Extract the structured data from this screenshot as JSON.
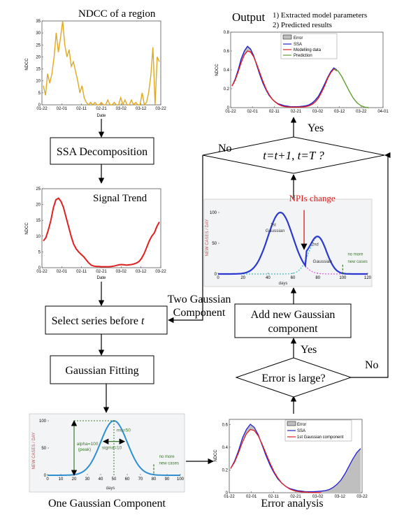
{
  "panels": {
    "ndcc": {
      "title": "NDCC of a region",
      "ylabel": "NDCC",
      "xlabel": "Date",
      "yticks": [
        "0",
        "5",
        "10",
        "15",
        "20",
        "25",
        "30",
        "35"
      ],
      "xticks": [
        "01-22",
        "02-01",
        "02-11",
        "02-21",
        "03-02",
        "03-12",
        "03-22"
      ],
      "color": "#e0a820",
      "values": [
        8,
        4,
        13,
        9,
        13,
        20,
        30,
        22,
        28,
        35,
        25,
        20,
        23,
        16,
        18,
        14,
        10,
        5,
        8,
        3,
        1,
        0,
        1,
        0,
        1,
        0,
        0,
        1,
        0,
        0,
        2,
        0,
        0,
        1,
        0,
        0,
        3,
        0,
        2,
        0,
        0,
        2,
        0,
        1,
        0,
        0,
        5,
        0,
        1,
        5,
        12,
        24,
        0,
        20,
        18
      ]
    },
    "trend": {
      "title": "Signal Trend",
      "ylabel": "NDCC",
      "xlabel": "Date",
      "yticks": [
        "0",
        "5",
        "10",
        "15",
        "20",
        "25"
      ],
      "xticks": [
        "01-22",
        "02-01",
        "02-11",
        "02-21",
        "03-02",
        "03-12",
        "03-22"
      ],
      "color": "#e02020",
      "values": [
        8.5,
        9.5,
        12,
        15,
        19,
        21.5,
        22,
        21,
        19,
        16,
        13,
        10,
        7.5,
        6,
        5,
        4.2,
        3.5,
        2.5,
        1.5,
        0.8,
        0.5,
        0.4,
        0.4,
        0.3,
        0.3,
        0.3,
        0.3,
        0.4,
        0.5,
        0.7,
        0.9,
        1,
        0.9,
        0.8,
        0.9,
        1,
        1.2,
        1.5,
        2,
        3,
        4.5,
        6.5,
        8.5,
        10,
        11,
        13,
        14.5
      ]
    },
    "output": {
      "ylabel": "NDCC",
      "yticks": [
        "0",
        "0.2",
        "0.4",
        "0.6",
        "0.8"
      ],
      "xticks": [
        "01-22",
        "02-01",
        "02-11",
        "02-21",
        "03-02",
        "03-12",
        "03-22",
        "04-01"
      ],
      "legend": [
        "Error",
        "SSA",
        "Modelling data",
        "Prediction"
      ],
      "colors": {
        "error": "#bfbfbf",
        "ssa": "#2020d0",
        "model": "#e02020",
        "prediction": "#60a030"
      }
    },
    "error": {
      "ylabel": "NDCC",
      "yticks": [
        "0",
        "0.2",
        "0.4",
        "0.6"
      ],
      "xticks": [
        "01-22",
        "02-01",
        "02-11",
        "02-21",
        "03-02",
        "03-12",
        "03-22"
      ],
      "legend": [
        "Error",
        "SSA",
        "1st Gaussian component"
      ]
    },
    "one_gauss": {
      "ylabel": "NEW CASES / DAY",
      "xlabel": "days",
      "yticks": [
        "0",
        "50",
        "100"
      ],
      "xticks": [
        "0",
        "10",
        "20",
        "30",
        "40",
        "50",
        "60",
        "70",
        "80",
        "90",
        "100"
      ],
      "ann_alpha": "alpha=100",
      "ann_peak": "(peak)",
      "ann_mu": "mu=50",
      "ann_sigma": "sigma=10",
      "ann_nomore": "no more",
      "ann_newcases": "new cases"
    },
    "two_gauss": {
      "ylabel": "NEW CASES / DAY",
      "xlabel": "days",
      "yticks": [
        "0",
        "50",
        "100"
      ],
      "xticks": [
        "0",
        "20",
        "40",
        "60",
        "80",
        "100",
        "120"
      ],
      "npis": "NPIs change",
      "g1": "Gaussian",
      "g2": "Gaussian",
      "sup1": "1st",
      "sup2": "2nd",
      "ann_nomore": "no more",
      "ann_newcases": "new cases"
    }
  },
  "output_title": "Output",
  "output_item1": "1) Extracted model parameters",
  "output_item2": "2) Predicted results",
  "boxes": {
    "ssa": "SSA Decomposition",
    "select": "Select series before ",
    "select_t": "t",
    "fitting": "Gaussian Fitting",
    "add1": "Add new Gaussian",
    "add2": "component"
  },
  "diamonds": {
    "t_check": "t=t+1, t=T ?",
    "error_large": "Error is large?"
  },
  "labels": {
    "yes_top": "Yes",
    "no_top": "No",
    "yes_bottom": "Yes",
    "no_bottom": "No",
    "one_gauss": "One Gaussian Component",
    "two_gauss1": "Two Gaussian",
    "two_gauss2": "Component",
    "error_analysis": "Error analysis"
  }
}
